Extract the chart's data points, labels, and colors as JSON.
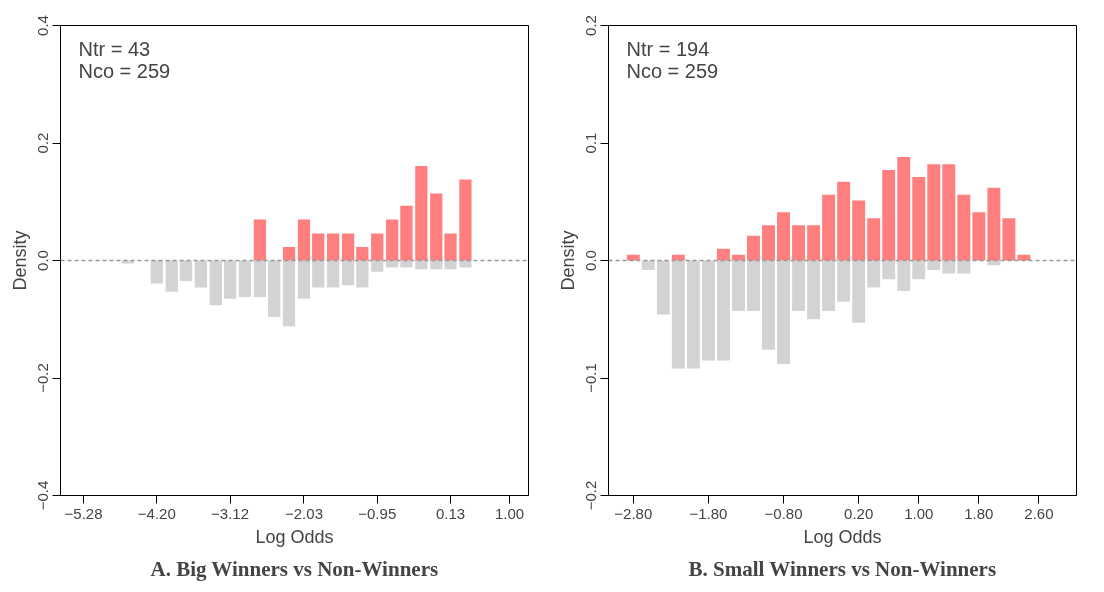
{
  "chart_data": [
    {
      "type": "bar",
      "title": "A. Big Winners vs Non-Winners",
      "xlabel": "Log Odds",
      "ylabel": "Density",
      "annotations": [
        "Ntr =  43",
        "Nco =  259"
      ],
      "x": [
        -5.5,
        -5.28,
        -5.06,
        -4.85,
        -4.63,
        -4.42,
        -4.2,
        -3.98,
        -3.77,
        -3.55,
        -3.33,
        -3.12,
        -2.9,
        -2.68,
        -2.47,
        -2.25,
        -2.03,
        -1.82,
        -1.6,
        -1.38,
        -1.17,
        -0.95,
        -0.73,
        -0.52,
        -0.3,
        -0.08,
        0.13,
        0.35,
        0.57,
        0.78,
        1.0
      ],
      "series": [
        {
          "color": "#d3d3d3",
          "values": [
            0,
            0,
            0,
            0,
            -0.005,
            0,
            -0.039,
            -0.053,
            -0.035,
            -0.046,
            -0.076,
            -0.065,
            -0.062,
            -0.062,
            -0.096,
            -0.112,
            -0.065,
            -0.046,
            -0.046,
            -0.042,
            -0.046,
            -0.019,
            -0.012,
            -0.012,
            -0.015,
            -0.015,
            -0.015,
            -0.012,
            0,
            0,
            0
          ]
        },
        {
          "color": "#ff7f7f",
          "values": [
            0,
            0,
            0,
            0,
            0,
            0,
            0,
            0,
            0,
            0,
            0,
            0,
            0,
            0.07,
            0,
            0.023,
            0.07,
            0.046,
            0.046,
            0.046,
            0.023,
            0.046,
            0.07,
            0.093,
            0.161,
            0.114,
            0.046,
            0.138,
            0,
            0,
            0
          ]
        }
      ],
      "xlim": [
        -5.62,
        1.28
      ],
      "xticks": [
        {
          "value": -5.28,
          "label": "−5.28"
        },
        {
          "value": -4.2,
          "label": "−4.20"
        },
        {
          "value": -3.12,
          "label": "−3.12"
        },
        {
          "value": -2.03,
          "label": "−2.03"
        },
        {
          "value": -0.95,
          "label": "−0.95"
        },
        0.13,
        {
          "value": 1.0,
          "label": "1.00"
        }
      ],
      "stacked": true,
      "ylim": [
        -0.4,
        0.4
      ],
      "yticks": [
        {
          "value": -0.4,
          "label": "−0.4"
        },
        {
          "value": -0.2,
          "label": "−0.2"
        },
        {
          "value": 0,
          "label": "0.0"
        },
        0.2,
        0.4
      ],
      "ref_lines": [
        {
          "axis": "y",
          "value": 0,
          "color": "#999999",
          "line_style": "dashed"
        }
      ],
      "grid": false
    },
    {
      "type": "bar",
      "title": "B. Small Winners vs Non-Winners",
      "xlabel": "Log Odds",
      "ylabel": "Density",
      "annotations": [
        "Ntr =  194",
        "Nco =  259"
      ],
      "x": [
        -2.8,
        -2.6,
        -2.4,
        -2.2,
        -2.0,
        -1.8,
        -1.6,
        -1.4,
        -1.2,
        -1.0,
        -0.8,
        -0.6,
        -0.4,
        -0.2,
        0.0,
        0.2,
        0.4,
        0.6,
        0.8,
        1.0,
        1.2,
        1.4,
        1.6,
        1.8,
        2.0,
        2.2,
        2.4,
        2.6,
        2.8,
        3.0
      ],
      "series": [
        {
          "color": "#d3d3d3",
          "values": [
            0,
            -0.008,
            -0.046,
            -0.092,
            -0.092,
            -0.085,
            -0.085,
            -0.043,
            -0.043,
            -0.076,
            -0.088,
            -0.043,
            -0.05,
            -0.043,
            -0.035,
            -0.053,
            -0.023,
            -0.016,
            -0.026,
            -0.016,
            -0.008,
            -0.011,
            -0.011,
            0,
            -0.004,
            0,
            0,
            0,
            0,
            0
          ]
        },
        {
          "color": "#ff7f7f",
          "values": [
            0.005,
            0,
            0,
            0.005,
            0,
            0,
            0.01,
            0.005,
            0.021,
            0.03,
            0.041,
            0.03,
            0.03,
            0.056,
            0.067,
            0.051,
            0.036,
            0.077,
            0.088,
            0.071,
            0.082,
            0.082,
            0.056,
            0.041,
            0.062,
            0.036,
            0.005,
            0,
            0,
            0
          ]
        }
      ],
      "stacked": true,
      "xlim": [
        -3.13,
        3.1
      ],
      "xticks": [
        {
          "value": -2.8,
          "label": "−2.80"
        },
        {
          "value": -1.8,
          "label": "−1.80"
        },
        {
          "value": -0.8,
          "label": "−0.80"
        },
        {
          "value": 0.2,
          "label": "0.20"
        },
        {
          "value": 1.0,
          "label": "1.00"
        },
        {
          "value": 1.8,
          "label": "1.80"
        },
        {
          "value": 2.6,
          "label": "2.60"
        }
      ],
      "ylim": [
        -0.2,
        0.2
      ],
      "yticks": [
        {
          "value": -0.2,
          "label": "−0.2"
        },
        {
          "value": -0.1,
          "label": "−0.1"
        },
        {
          "value": 0,
          "label": "0.0"
        },
        0.1,
        0.2
      ],
      "ref_lines": [
        {
          "axis": "y",
          "value": 0,
          "color": "#999999",
          "line_style": "dashed"
        }
      ],
      "grid": false
    }
  ]
}
